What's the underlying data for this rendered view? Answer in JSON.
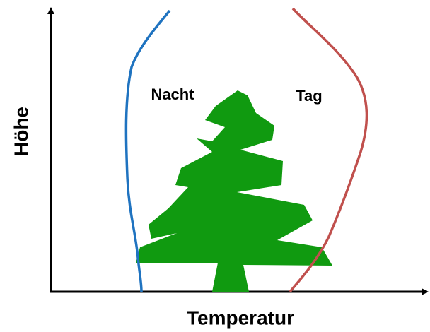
{
  "axes": {
    "y_label": "Höhe",
    "x_label": "Temperatur"
  },
  "curves": [
    {
      "label": "Nacht"
    },
    {
      "label": "Tag"
    }
  ]
}
